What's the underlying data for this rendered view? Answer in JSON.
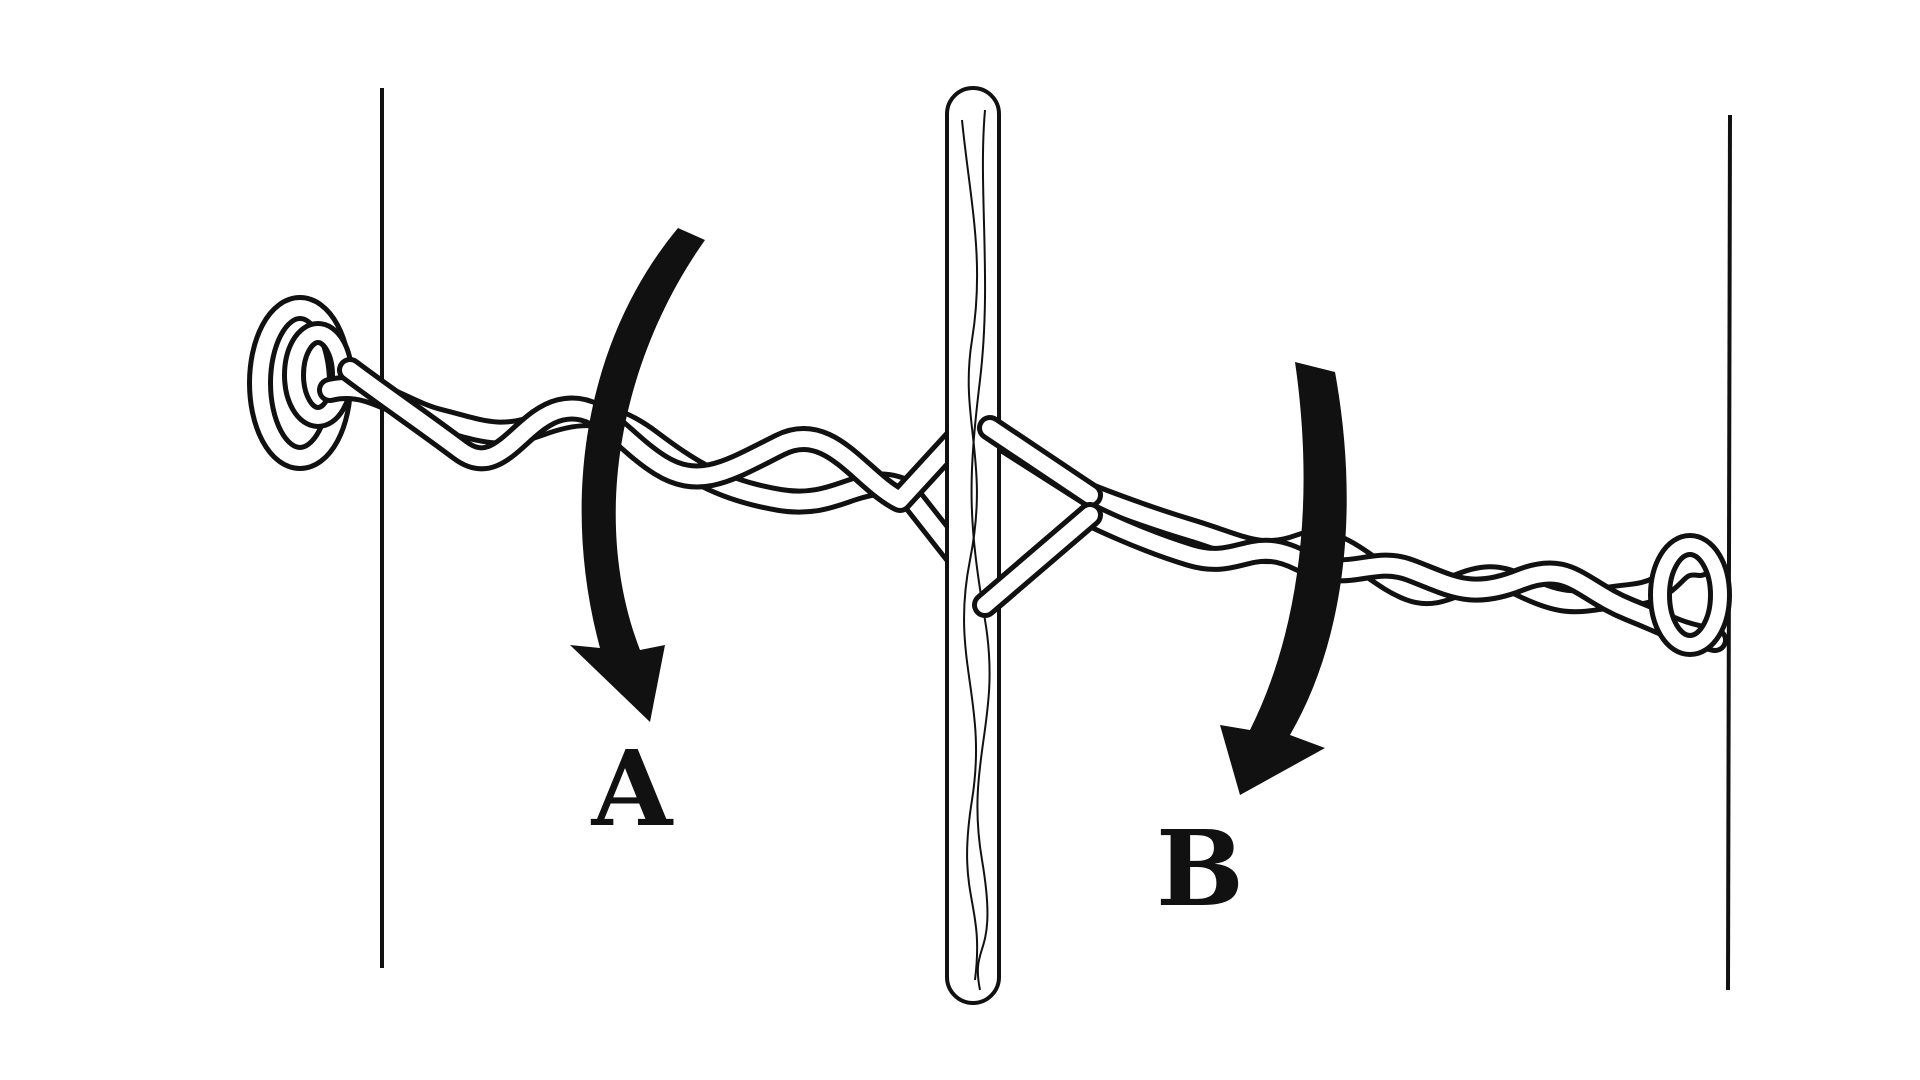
{
  "labels": {
    "a": "A",
    "b": "B"
  },
  "colors": {
    "ink": "#111111",
    "paper": "#ffffff"
  },
  "icons": {
    "arrow_a": "curved-arrow-down-icon",
    "arrow_b": "curved-arrow-down-icon",
    "stick": "twisting-stick-icon",
    "rope": "twisted-rope-icon"
  }
}
